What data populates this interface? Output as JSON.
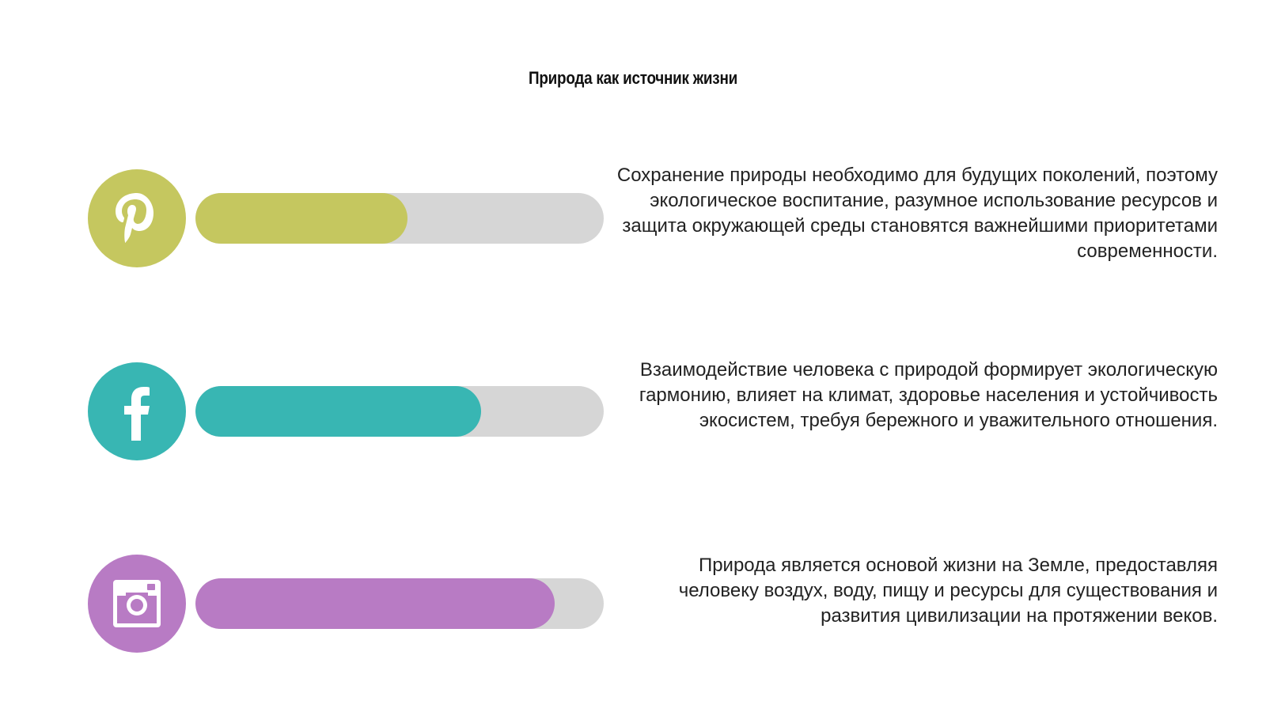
{
  "slide": {
    "title": "Природа как источник жизни"
  },
  "rows": [
    {
      "icon": "pinterest-icon",
      "color": "#c5c75f",
      "progress": 0.52,
      "text": "Сохранение природы необходимо для будущих поколений, поэтому экологическое воспитание, разумное использование ресурсов и защита окружающей среды становятся важнейшими приоритетами современности."
    },
    {
      "icon": "facebook-icon",
      "color": "#38b6b3",
      "progress": 0.7,
      "text": "Взаимодействие человека с природой формирует экологическую гармонию, влияет на климат, здоровье населения и устойчивость экосистем, требуя бережного и уважительного отношения."
    },
    {
      "icon": "instagram-icon",
      "color": "#b87bc4",
      "progress": 0.88,
      "text": "Природа является основой жизни на Земле, предоставляя человеку воздух, воду, пищу и ресурсы для существования и развития цивилизации на протяжении веков."
    }
  ],
  "track_color": "#d6d6d6"
}
